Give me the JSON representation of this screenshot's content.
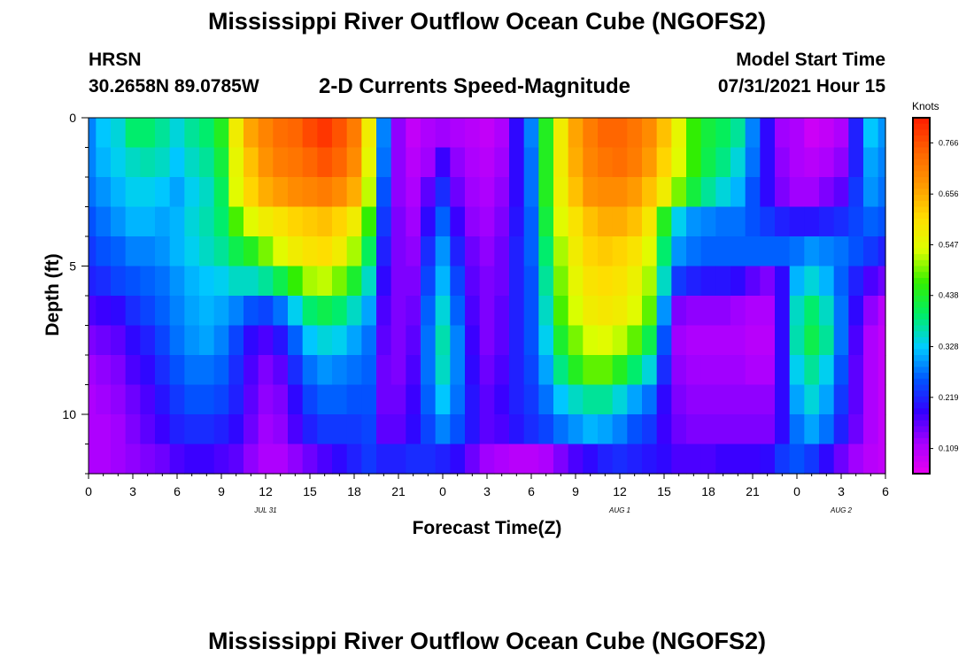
{
  "title": "Mississippi River Outflow Ocean Cube (NGOFS2)",
  "footer_title": "Mississippi River Outflow Ocean Cube (NGOFS2)",
  "station": "HRSN",
  "coords": "30.2658N  89.0785W",
  "subtitle": "2-D Currents Speed-Magnitude",
  "model_label": "Model Start Time",
  "model_time": "07/31/2021 Hour 15",
  "colorbar_title": "Knots",
  "colors": [
    "#ee00ee",
    "#aa00ff",
    "#3300ff",
    "#0055ff",
    "#00ccff",
    "#00ee66",
    "#33ee00",
    "#ddff00",
    "#ffdd00",
    "#ff9900",
    "#ff6600",
    "#ff2200"
  ],
  "chart_data": {
    "type": "heatmap",
    "title": "2-D Currents Speed-Magnitude",
    "xlabel": "Forecast Time(Z)",
    "ylabel": "Depth (ft)",
    "units": "Knots",
    "x_hours": [
      0,
      1,
      2,
      3,
      4,
      5,
      6,
      7,
      8,
      9,
      10,
      11,
      12,
      13,
      14,
      15,
      16,
      17,
      18,
      19,
      20,
      21,
      22,
      23,
      24,
      25,
      26,
      27,
      28,
      29,
      30,
      31,
      32,
      33,
      34,
      35,
      36,
      37,
      38,
      39,
      40,
      41,
      42,
      43,
      44,
      45,
      46,
      47,
      48,
      49,
      50,
      51,
      52,
      53,
      54
    ],
    "x_range": [
      0,
      54
    ],
    "x_ticks": [
      0,
      3,
      6,
      9,
      12,
      15,
      18,
      21,
      24,
      27,
      30,
      33,
      36,
      39,
      42,
      45,
      48,
      51,
      54
    ],
    "x_tick_labels": [
      "0",
      "3",
      "6",
      "9",
      "12",
      "15",
      "18",
      "21",
      "0",
      "3",
      "6",
      "9",
      "12",
      "15",
      "18",
      "21",
      "0",
      "3",
      "6"
    ],
    "date_labels": [
      {
        "hour": 12,
        "text": "JUL 31"
      },
      {
        "hour": 36,
        "text": "AUG 1"
      },
      {
        "hour": 51,
        "text": "AUG 2"
      }
    ],
    "y_depth_ft": [
      0.5,
      1.5,
      2.5,
      3.5,
      4.5,
      5.5,
      6.5,
      7.5,
      8.5,
      9.5,
      10.5,
      11.5
    ],
    "y_range": [
      0,
      12
    ],
    "y_ticks": [
      0,
      5,
      10
    ],
    "y_tick_labels": [
      "0",
      "5",
      "10"
    ],
    "colorbar_range": [
      0.055,
      0.82
    ],
    "colorbar_ticks": [
      0.766,
      0.656,
      0.547,
      0.438,
      0.328,
      0.219,
      0.109
    ],
    "colorbar_tick_labels": [
      "0.766",
      "0.656",
      "0.547",
      "0.438",
      "0.328",
      "0.219",
      "0.109"
    ],
    "values": [
      [
        0.29,
        0.33,
        0.35,
        0.4,
        0.4,
        0.38,
        0.35,
        0.38,
        0.4,
        0.45,
        0.58,
        0.67,
        0.71,
        0.74,
        0.75,
        0.78,
        0.8,
        0.77,
        0.72,
        0.58,
        0.29,
        0.14,
        0.1,
        0.12,
        0.13,
        0.12,
        0.11,
        0.1,
        0.12,
        0.2,
        0.29,
        0.45,
        0.58,
        0.67,
        0.72,
        0.75,
        0.75,
        0.73,
        0.7,
        0.64,
        0.56,
        0.47,
        0.43,
        0.41,
        0.38,
        0.29,
        0.2,
        0.13,
        0.12,
        0.09,
        0.1,
        0.12,
        0.22,
        0.33,
        0.3
      ],
      [
        0.29,
        0.32,
        0.34,
        0.36,
        0.37,
        0.36,
        0.33,
        0.36,
        0.38,
        0.43,
        0.56,
        0.64,
        0.69,
        0.72,
        0.73,
        0.75,
        0.77,
        0.75,
        0.7,
        0.56,
        0.28,
        0.14,
        0.11,
        0.13,
        0.19,
        0.14,
        0.12,
        0.11,
        0.13,
        0.2,
        0.28,
        0.45,
        0.58,
        0.66,
        0.71,
        0.73,
        0.74,
        0.72,
        0.68,
        0.62,
        0.55,
        0.47,
        0.42,
        0.39,
        0.35,
        0.28,
        0.2,
        0.14,
        0.12,
        0.11,
        0.12,
        0.14,
        0.22,
        0.31,
        0.29
      ],
      [
        0.28,
        0.3,
        0.32,
        0.34,
        0.34,
        0.33,
        0.31,
        0.34,
        0.36,
        0.41,
        0.55,
        0.62,
        0.66,
        0.68,
        0.7,
        0.71,
        0.72,
        0.7,
        0.66,
        0.53,
        0.26,
        0.14,
        0.12,
        0.17,
        0.23,
        0.16,
        0.13,
        0.12,
        0.14,
        0.2,
        0.28,
        0.45,
        0.57,
        0.64,
        0.69,
        0.7,
        0.7,
        0.68,
        0.64,
        0.58,
        0.5,
        0.43,
        0.38,
        0.35,
        0.32,
        0.26,
        0.2,
        0.15,
        0.13,
        0.13,
        0.15,
        0.17,
        0.24,
        0.3,
        0.28
      ],
      [
        0.26,
        0.28,
        0.3,
        0.32,
        0.32,
        0.31,
        0.32,
        0.35,
        0.37,
        0.4,
        0.48,
        0.55,
        0.58,
        0.6,
        0.62,
        0.63,
        0.64,
        0.62,
        0.58,
        0.47,
        0.24,
        0.15,
        0.13,
        0.2,
        0.27,
        0.19,
        0.14,
        0.13,
        0.15,
        0.21,
        0.27,
        0.43,
        0.55,
        0.6,
        0.64,
        0.66,
        0.66,
        0.64,
        0.59,
        0.45,
        0.34,
        0.3,
        0.29,
        0.28,
        0.28,
        0.26,
        0.24,
        0.22,
        0.21,
        0.21,
        0.22,
        0.23,
        0.25,
        0.27,
        0.26
      ],
      [
        0.24,
        0.26,
        0.27,
        0.29,
        0.29,
        0.3,
        0.32,
        0.34,
        0.36,
        0.38,
        0.42,
        0.45,
        0.5,
        0.55,
        0.58,
        0.6,
        0.61,
        0.58,
        0.52,
        0.41,
        0.22,
        0.15,
        0.14,
        0.23,
        0.3,
        0.22,
        0.16,
        0.14,
        0.16,
        0.22,
        0.27,
        0.4,
        0.52,
        0.58,
        0.62,
        0.63,
        0.62,
        0.6,
        0.55,
        0.4,
        0.3,
        0.28,
        0.27,
        0.27,
        0.27,
        0.27,
        0.27,
        0.27,
        0.28,
        0.3,
        0.29,
        0.28,
        0.26,
        0.24,
        0.22
      ],
      [
        0.22,
        0.23,
        0.25,
        0.26,
        0.27,
        0.28,
        0.3,
        0.32,
        0.33,
        0.34,
        0.36,
        0.36,
        0.38,
        0.42,
        0.47,
        0.52,
        0.53,
        0.5,
        0.44,
        0.36,
        0.2,
        0.15,
        0.15,
        0.25,
        0.32,
        0.25,
        0.17,
        0.15,
        0.16,
        0.22,
        0.26,
        0.38,
        0.5,
        0.56,
        0.6,
        0.61,
        0.6,
        0.57,
        0.52,
        0.36,
        0.24,
        0.22,
        0.21,
        0.21,
        0.2,
        0.17,
        0.15,
        0.2,
        0.32,
        0.35,
        0.32,
        0.27,
        0.22,
        0.18,
        0.16
      ],
      [
        0.18,
        0.19,
        0.2,
        0.23,
        0.25,
        0.27,
        0.29,
        0.31,
        0.32,
        0.31,
        0.29,
        0.26,
        0.25,
        0.28,
        0.34,
        0.4,
        0.42,
        0.4,
        0.36,
        0.31,
        0.18,
        0.15,
        0.16,
        0.27,
        0.35,
        0.27,
        0.18,
        0.15,
        0.17,
        0.22,
        0.26,
        0.36,
        0.48,
        0.54,
        0.58,
        0.59,
        0.58,
        0.55,
        0.49,
        0.3,
        0.15,
        0.14,
        0.14,
        0.14,
        0.13,
        0.12,
        0.12,
        0.2,
        0.36,
        0.4,
        0.36,
        0.28,
        0.2,
        0.14,
        0.11
      ],
      [
        0.15,
        0.16,
        0.17,
        0.2,
        0.22,
        0.25,
        0.28,
        0.3,
        0.31,
        0.29,
        0.25,
        0.2,
        0.18,
        0.21,
        0.27,
        0.33,
        0.35,
        0.34,
        0.31,
        0.28,
        0.17,
        0.15,
        0.17,
        0.28,
        0.37,
        0.29,
        0.19,
        0.15,
        0.17,
        0.22,
        0.26,
        0.34,
        0.44,
        0.5,
        0.54,
        0.55,
        0.53,
        0.49,
        0.42,
        0.26,
        0.13,
        0.12,
        0.12,
        0.12,
        0.12,
        0.11,
        0.11,
        0.2,
        0.37,
        0.42,
        0.38,
        0.28,
        0.18,
        0.12,
        0.1
      ],
      [
        0.13,
        0.14,
        0.15,
        0.18,
        0.2,
        0.23,
        0.26,
        0.28,
        0.28,
        0.27,
        0.23,
        0.18,
        0.15,
        0.17,
        0.23,
        0.28,
        0.3,
        0.29,
        0.28,
        0.27,
        0.16,
        0.15,
        0.18,
        0.28,
        0.36,
        0.29,
        0.2,
        0.16,
        0.18,
        0.22,
        0.25,
        0.31,
        0.39,
        0.45,
        0.49,
        0.49,
        0.45,
        0.4,
        0.35,
        0.23,
        0.14,
        0.13,
        0.13,
        0.13,
        0.13,
        0.12,
        0.12,
        0.2,
        0.34,
        0.38,
        0.34,
        0.26,
        0.17,
        0.12,
        0.1
      ],
      [
        0.12,
        0.13,
        0.14,
        0.16,
        0.18,
        0.21,
        0.24,
        0.26,
        0.26,
        0.25,
        0.22,
        0.17,
        0.14,
        0.15,
        0.2,
        0.25,
        0.27,
        0.27,
        0.26,
        0.26,
        0.16,
        0.16,
        0.19,
        0.27,
        0.33,
        0.28,
        0.21,
        0.17,
        0.19,
        0.22,
        0.24,
        0.28,
        0.33,
        0.36,
        0.38,
        0.38,
        0.35,
        0.31,
        0.28,
        0.2,
        0.15,
        0.14,
        0.14,
        0.14,
        0.14,
        0.14,
        0.14,
        0.2,
        0.31,
        0.35,
        0.31,
        0.24,
        0.17,
        0.12,
        0.1
      ],
      [
        0.12,
        0.12,
        0.13,
        0.15,
        0.17,
        0.19,
        0.22,
        0.23,
        0.23,
        0.22,
        0.2,
        0.16,
        0.13,
        0.14,
        0.18,
        0.22,
        0.24,
        0.24,
        0.24,
        0.25,
        0.17,
        0.17,
        0.2,
        0.25,
        0.29,
        0.26,
        0.21,
        0.17,
        0.18,
        0.21,
        0.23,
        0.25,
        0.28,
        0.3,
        0.32,
        0.31,
        0.29,
        0.26,
        0.24,
        0.19,
        0.16,
        0.15,
        0.15,
        0.15,
        0.15,
        0.15,
        0.15,
        0.2,
        0.28,
        0.31,
        0.28,
        0.22,
        0.16,
        0.12,
        0.1
      ],
      [
        0.12,
        0.12,
        0.13,
        0.14,
        0.15,
        0.16,
        0.18,
        0.19,
        0.19,
        0.18,
        0.17,
        0.14,
        0.12,
        0.12,
        0.14,
        0.16,
        0.18,
        0.2,
        0.22,
        0.24,
        0.22,
        0.22,
        0.23,
        0.23,
        0.22,
        0.2,
        0.16,
        0.13,
        0.12,
        0.11,
        0.11,
        0.12,
        0.15,
        0.18,
        0.2,
        0.22,
        0.23,
        0.22,
        0.21,
        0.2,
        0.18,
        0.18,
        0.18,
        0.19,
        0.19,
        0.19,
        0.2,
        0.24,
        0.26,
        0.24,
        0.2,
        0.16,
        0.13,
        0.11,
        0.1
      ]
    ]
  }
}
